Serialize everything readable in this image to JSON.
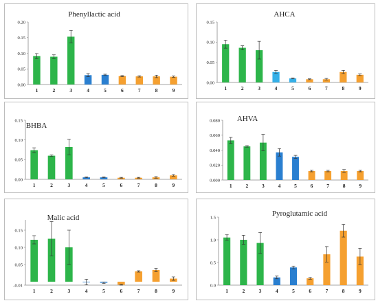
{
  "colors": {
    "green": "#2db54a",
    "blue": "#2a7fd0",
    "lightblue": "#35b0e8",
    "orange": "#f5a030"
  },
  "chart_data": [
    {
      "type": "bar",
      "title": "Phenyllactic acid",
      "categories": [
        "1",
        "2",
        "3",
        "4",
        "5",
        "6",
        "7",
        "8",
        "9"
      ],
      "values": [
        0.091,
        0.089,
        0.153,
        0.03,
        0.031,
        0.027,
        0.026,
        0.026,
        0.025
      ],
      "errors": [
        0.008,
        0.006,
        0.02,
        0.005,
        0.002,
        0.002,
        0.002,
        0.004,
        0.002
      ],
      "bar_colors": [
        "green",
        "green",
        "green",
        "blue",
        "blue",
        "orange",
        "orange",
        "orange",
        "orange"
      ],
      "yticks": [
        "0.00",
        "0.05",
        "0.10",
        "0.15",
        "0.20"
      ],
      "ylim": [
        0,
        0.2
      ]
    },
    {
      "type": "bar",
      "title": "AHCA",
      "categories": [
        "1",
        "2",
        "3",
        "4",
        "5",
        "6",
        "7",
        "8",
        "9"
      ],
      "values": [
        0.095,
        0.086,
        0.08,
        0.026,
        0.01,
        0.008,
        0.008,
        0.026,
        0.019
      ],
      "errors": [
        0.01,
        0.005,
        0.022,
        0.004,
        0.001,
        0.001,
        0.002,
        0.004,
        0.002
      ],
      "bar_colors": [
        "green",
        "green",
        "green",
        "lightblue",
        "lightblue",
        "orange",
        "orange",
        "orange",
        "orange"
      ],
      "yticks": [
        "0.00",
        "0.05",
        "0.10",
        "0.15"
      ],
      "ylim": [
        0,
        0.15
      ]
    },
    {
      "type": "bar",
      "title": "BHBA",
      "categories": [
        "1",
        "2",
        "3",
        "4",
        "5",
        "6",
        "7",
        "8",
        "9"
      ],
      "values": [
        0.074,
        0.06,
        0.082,
        0.005,
        0.005,
        0.004,
        0.004,
        0.005,
        0.01
      ],
      "errors": [
        0.006,
        0.002,
        0.02,
        0.001,
        0.001,
        0.001,
        0.001,
        0.002,
        0.002
      ],
      "bar_colors": [
        "green",
        "green",
        "green",
        "blue",
        "blue",
        "orange",
        "orange",
        "orange",
        "orange"
      ],
      "yticks": [
        "0.00",
        "0.05",
        "0.10",
        "0.15"
      ],
      "ylim": [
        0,
        0.15
      ]
    },
    {
      "type": "bar",
      "title": "AHVA",
      "categories": [
        "1",
        "2",
        "3",
        "4",
        "5",
        "6",
        "7",
        "8",
        "9"
      ],
      "values": [
        0.053,
        0.045,
        0.05,
        0.037,
        0.031,
        0.012,
        0.012,
        0.012,
        0.012
      ],
      "errors": [
        0.004,
        0.001,
        0.011,
        0.005,
        0.002,
        0.001,
        0.001,
        0.002,
        0.001
      ],
      "bar_colors": [
        "green",
        "green",
        "green",
        "blue",
        "blue",
        "orange",
        "orange",
        "orange",
        "orange"
      ],
      "yticks": [
        "0.000",
        "0.020",
        "0.040",
        "0.060",
        "0.080"
      ],
      "ylim": [
        0,
        0.08
      ]
    },
    {
      "type": "bar",
      "title": "Malic acid",
      "categories": [
        "1",
        "2",
        "3",
        "4",
        "5",
        "6",
        "7",
        "8",
        "9"
      ],
      "values": [
        0.122,
        0.125,
        0.1,
        -0.001,
        -0.003,
        -0.009,
        0.03,
        0.034,
        0.009
      ],
      "errors": [
        0.012,
        0.05,
        0.05,
        0.008,
        0.002,
        0.001,
        0.002,
        0.005,
        0.005
      ],
      "bar_colors": [
        "green",
        "green",
        "green",
        "blue",
        "blue",
        "orange",
        "orange",
        "orange",
        "orange"
      ],
      "yticks": [
        "-0.01",
        "0.05",
        "0.10",
        "0.15"
      ],
      "ylim": [
        -0.01,
        0.18
      ]
    },
    {
      "type": "bar",
      "title": "Pyroglutamic acid",
      "categories": [
        "1",
        "2",
        "3",
        "4",
        "5",
        "6",
        "7",
        "8",
        "9"
      ],
      "values": [
        1.05,
        1.0,
        0.93,
        0.17,
        0.39,
        0.15,
        0.68,
        1.2,
        0.63
      ],
      "errors": [
        0.06,
        0.1,
        0.23,
        0.03,
        0.03,
        0.02,
        0.17,
        0.14,
        0.18
      ],
      "bar_colors": [
        "green",
        "green",
        "green",
        "blue",
        "blue",
        "orange",
        "orange",
        "orange",
        "orange"
      ],
      "yticks": [
        "0.0",
        "0.5",
        "1.0",
        "1.5"
      ],
      "ylim": [
        0,
        1.5
      ]
    }
  ]
}
